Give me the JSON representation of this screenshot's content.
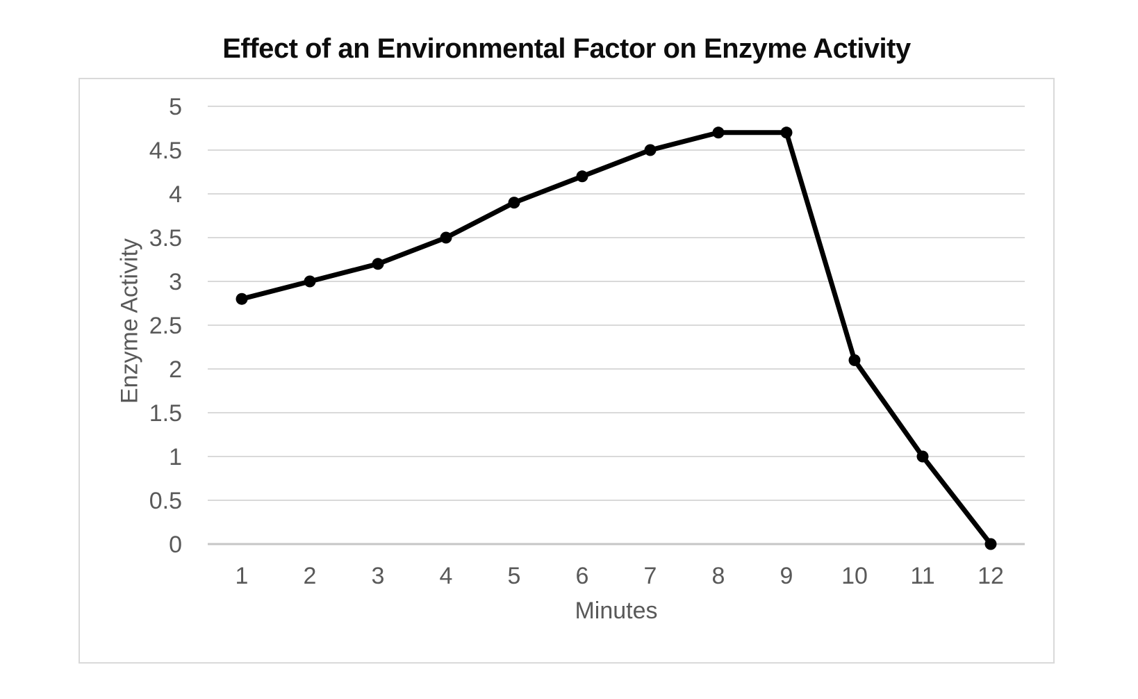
{
  "title": "Effect of an Environmental Factor on Enzyme Activity",
  "colors": {
    "background": "#ffffff",
    "frame_border": "#d9d9d9",
    "gridline": "#d9d9d9",
    "zero_line": "#c6c6c6",
    "axis_text": "#595959",
    "title_text": "#0d0d0d",
    "line": "#000000",
    "marker": "#000000"
  },
  "chart_data": {
    "type": "line",
    "title": "Effect of an Environmental Factor on Enzyme Activity",
    "xlabel": "Minutes",
    "ylabel": "Enzyme Activity",
    "x": [
      1,
      2,
      3,
      4,
      5,
      6,
      7,
      8,
      9,
      10,
      11,
      12
    ],
    "values": [
      2.8,
      3.0,
      3.2,
      3.5,
      3.9,
      4.2,
      4.5,
      4.7,
      4.7,
      2.1,
      1.0,
      0.0
    ],
    "yticks": [
      0,
      0.5,
      1,
      1.5,
      2,
      2.5,
      3,
      3.5,
      4,
      4.5,
      5
    ],
    "ylim": [
      0,
      5
    ],
    "grid": "horizontal",
    "legend": "none",
    "line_color": "#000000",
    "marker": "circle"
  }
}
